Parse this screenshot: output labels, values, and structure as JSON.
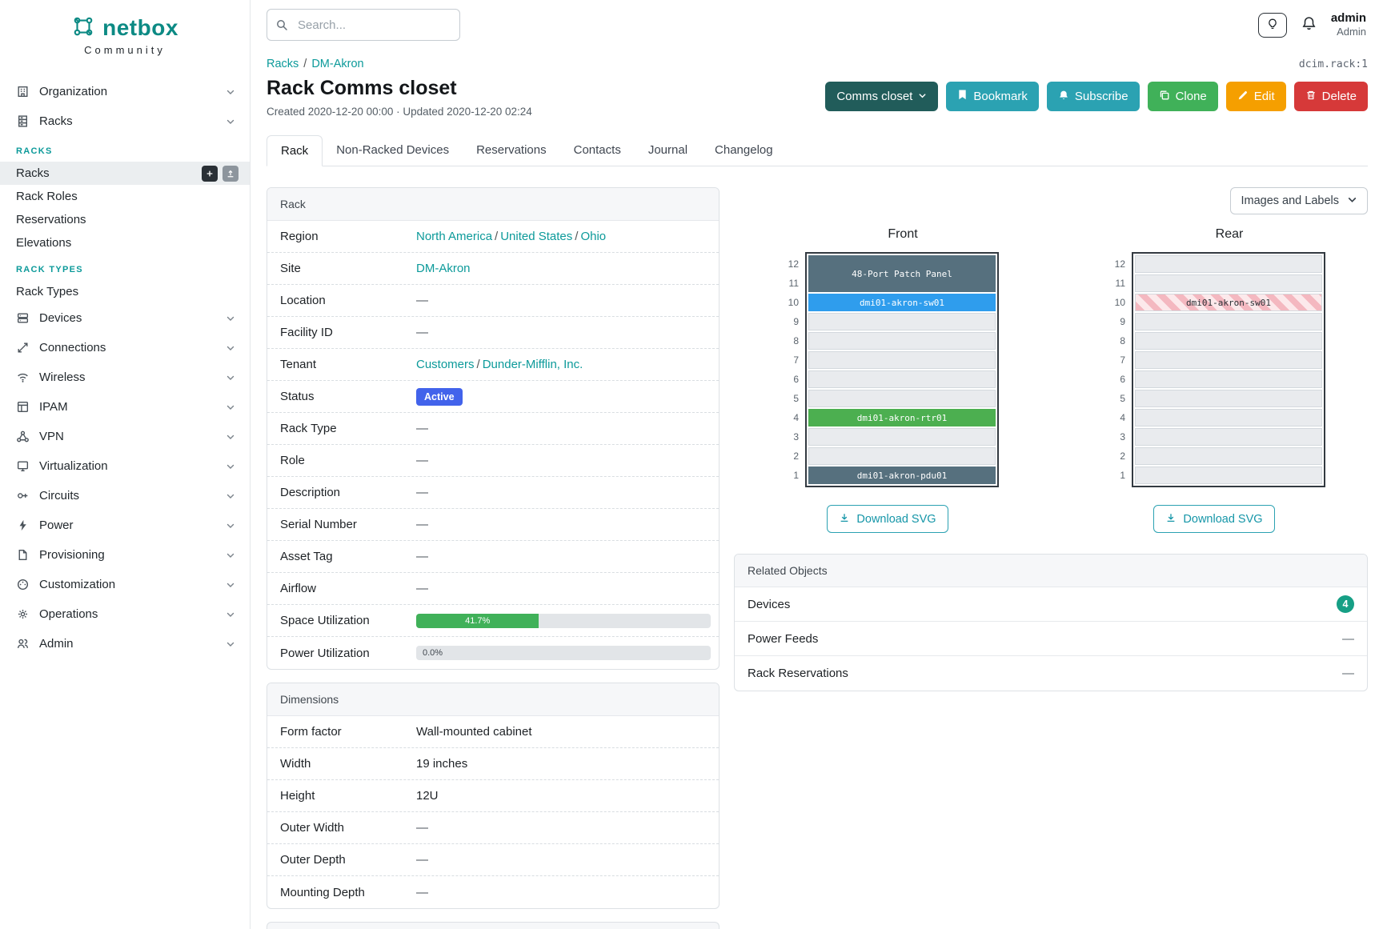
{
  "brand": {
    "name": "netbox",
    "subtitle": "Community"
  },
  "topbar": {
    "search_placeholder": "Search...",
    "user_name": "admin",
    "user_role": "Admin"
  },
  "sidebar": {
    "top": [
      "Organization",
      "Racks"
    ],
    "racks_section": {
      "header": "RACKS",
      "items": [
        "Racks",
        "Rack Roles",
        "Reservations",
        "Elevations"
      ]
    },
    "rack_types_section": {
      "header": "RACK TYPES",
      "items": [
        "Rack Types"
      ]
    },
    "bottom": [
      "Devices",
      "Connections",
      "Wireless",
      "IPAM",
      "VPN",
      "Virtualization",
      "Circuits",
      "Power",
      "Provisioning",
      "Customization",
      "Operations",
      "Admin"
    ]
  },
  "breadcrumb": {
    "items": [
      "Racks",
      "DM-Akron"
    ],
    "separator": "/"
  },
  "page": {
    "object_id": "dcim.rack:1",
    "title": "Rack Comms closet",
    "meta": "Created 2020-12-20 00:00 · Updated 2020-12-20 02:24",
    "actions": {
      "view": "Comms closet",
      "bookmark": "Bookmark",
      "subscribe": "Subscribe",
      "clone": "Clone",
      "edit": "Edit",
      "delete": "Delete"
    },
    "tabs": [
      "Rack",
      "Non-Racked Devices",
      "Reservations",
      "Contacts",
      "Journal",
      "Changelog"
    ]
  },
  "rack_panel": {
    "title": "Rack",
    "labels": [
      "Region",
      "Site",
      "Location",
      "Facility ID",
      "Tenant",
      "Status",
      "Rack Type",
      "Role",
      "Description",
      "Serial Number",
      "Asset Tag",
      "Airflow",
      "Space Utilization",
      "Power Utilization"
    ],
    "sep": "/",
    "dash": "—",
    "region_links": [
      "North America",
      "United States",
      "Ohio"
    ],
    "site_link": "DM-Akron",
    "tenant_links": [
      "Customers",
      "Dunder-Mifflin, Inc."
    ],
    "status_badge": "Active",
    "space_utilization": {
      "percent": 41.7,
      "label": "41.7%"
    },
    "power_utilization": {
      "percent": 0.0,
      "label": "0.0%"
    }
  },
  "dimensions_panel": {
    "title": "Dimensions",
    "rows": [
      {
        "label": "Form factor",
        "value": "Wall-mounted cabinet"
      },
      {
        "label": "Width",
        "value": "19 inches"
      },
      {
        "label": "Height",
        "value": "12U"
      },
      {
        "label": "Outer Width",
        "value": "—"
      },
      {
        "label": "Outer Depth",
        "value": "—"
      },
      {
        "label": "Mounting Depth",
        "value": "—"
      }
    ]
  },
  "elevations": {
    "view_toggle": "Images and Labels",
    "download_label": "Download SVG",
    "unit_numbers": [
      12,
      11,
      10,
      9,
      8,
      7,
      6,
      5,
      4,
      3,
      2,
      1
    ],
    "front": {
      "title": "Front",
      "devices": {
        "patch_panel": "48-Port Patch Panel",
        "switch": "dmi01-akron-sw01",
        "router": "dmi01-akron-rtr01",
        "pdu": "dmi01-akron-pdu01"
      }
    },
    "rear": {
      "title": "Rear",
      "devices": {
        "switch": "dmi01-akron-sw01"
      }
    }
  },
  "related_objects": {
    "title": "Related Objects",
    "rows": [
      {
        "label": "Devices",
        "count": "4"
      },
      {
        "label": "Power Feeds",
        "value": "—"
      },
      {
        "label": "Rack Reservations",
        "value": "—"
      }
    ]
  },
  "colors": {
    "brand_teal": "#0c8a84",
    "link_teal": "#0c9a9a",
    "primary_button": "#2ba2b2",
    "dark_button": "#215c5a",
    "clone_green": "#40b159",
    "edit_yellow": "#f59f00",
    "delete_red": "#d63939",
    "status_blue": "#4263eb",
    "slot_slate": "#56707e",
    "slot_blue": "#2f9ded",
    "slot_green": "#4caf50",
    "utilization_green": "#40b159"
  }
}
